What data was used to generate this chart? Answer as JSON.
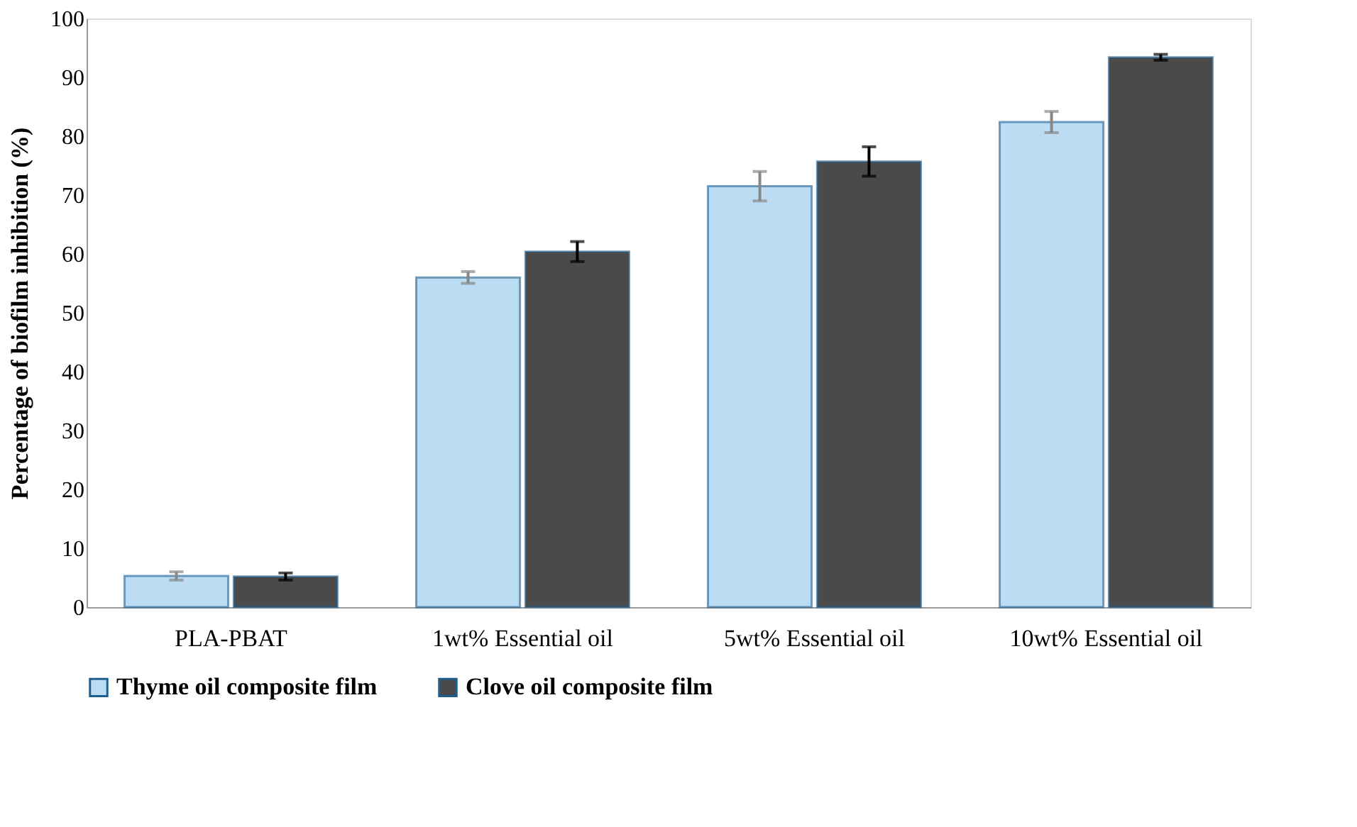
{
  "chart_data": {
    "type": "bar",
    "ylabel": "Percentage of biofilm  inhibition  (%)",
    "categories": [
      "PLA-PBAT",
      "1wt% Essential oil",
      "5wt% Essential oil",
      "10wt% Essential oil"
    ],
    "series": [
      {
        "name": "Thyme oil composite film",
        "color": "#bcdcf4",
        "values": [
          5.3,
          56.0,
          71.5,
          82.4
        ],
        "errors": [
          0.7,
          1.0,
          2.5,
          1.8
        ]
      },
      {
        "name": "Clove oil composite film",
        "color": "#4a4a4a",
        "values": [
          5.2,
          60.4,
          75.7,
          93.4
        ],
        "errors": [
          0.6,
          1.7,
          2.5,
          0.5
        ]
      }
    ],
    "ylim": [
      0,
      100
    ],
    "yticks": [
      0,
      10,
      20,
      30,
      40,
      50,
      60,
      70,
      80,
      90,
      100
    ],
    "grid": false,
    "legend": "bottom"
  }
}
